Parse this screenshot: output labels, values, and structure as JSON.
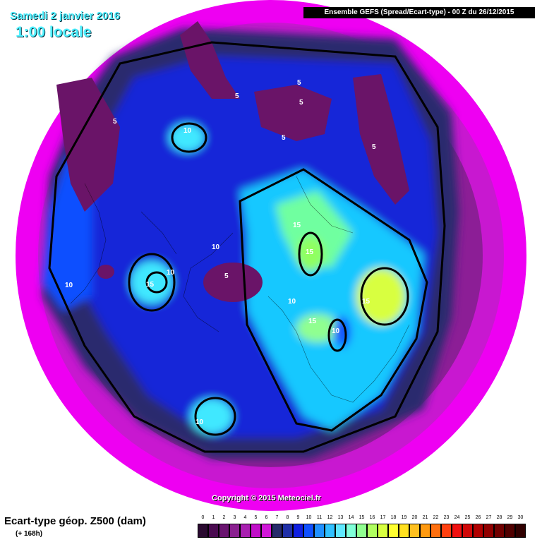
{
  "header": {
    "date": "Samedi 2 janvier 2016",
    "time": "1:00 locale",
    "run": "Ensemble GEFS  (Spread/Ecart-type) - 00 Z du 26/12/2015"
  },
  "copyright": "Copyright © 2015 Meteociel.fr",
  "footer": {
    "title": "Ecart-type géop. Z500 (dam)",
    "subtitle": "(+ 168h)"
  },
  "contour_labels": [
    "5",
    "5",
    "5",
    "5",
    "5",
    "5",
    "5",
    "10",
    "10",
    "10",
    "10",
    "10",
    "10",
    "10",
    "15",
    "15",
    "15",
    "15",
    "15"
  ],
  "legend": {
    "ticks": [
      "0",
      "1",
      "2",
      "3",
      "4",
      "5",
      "6",
      "7",
      "8",
      "9",
      "10",
      "11",
      "12",
      "13",
      "14",
      "15",
      "16",
      "17",
      "18",
      "19",
      "20",
      "21",
      "22",
      "23",
      "24",
      "25",
      "26",
      "27",
      "28",
      "29",
      "30"
    ],
    "colors": [
      "#2a0a30",
      "#4a0a50",
      "#6a1470",
      "#8a2090",
      "#a820b0",
      "#c010c8",
      "#d018d8",
      "#262a6a",
      "#2030a8",
      "#1020e0",
      "#1050ff",
      "#2090ff",
      "#30c0ff",
      "#60e8ff",
      "#80ffd8",
      "#90ff90",
      "#b0ff60",
      "#d8ff40",
      "#ffff30",
      "#ffe020",
      "#ffc020",
      "#ff9a10",
      "#ff7010",
      "#ff4010",
      "#f01010",
      "#d00808",
      "#b00000",
      "#900000",
      "#700000",
      "#500000",
      "#300000"
    ]
  }
}
